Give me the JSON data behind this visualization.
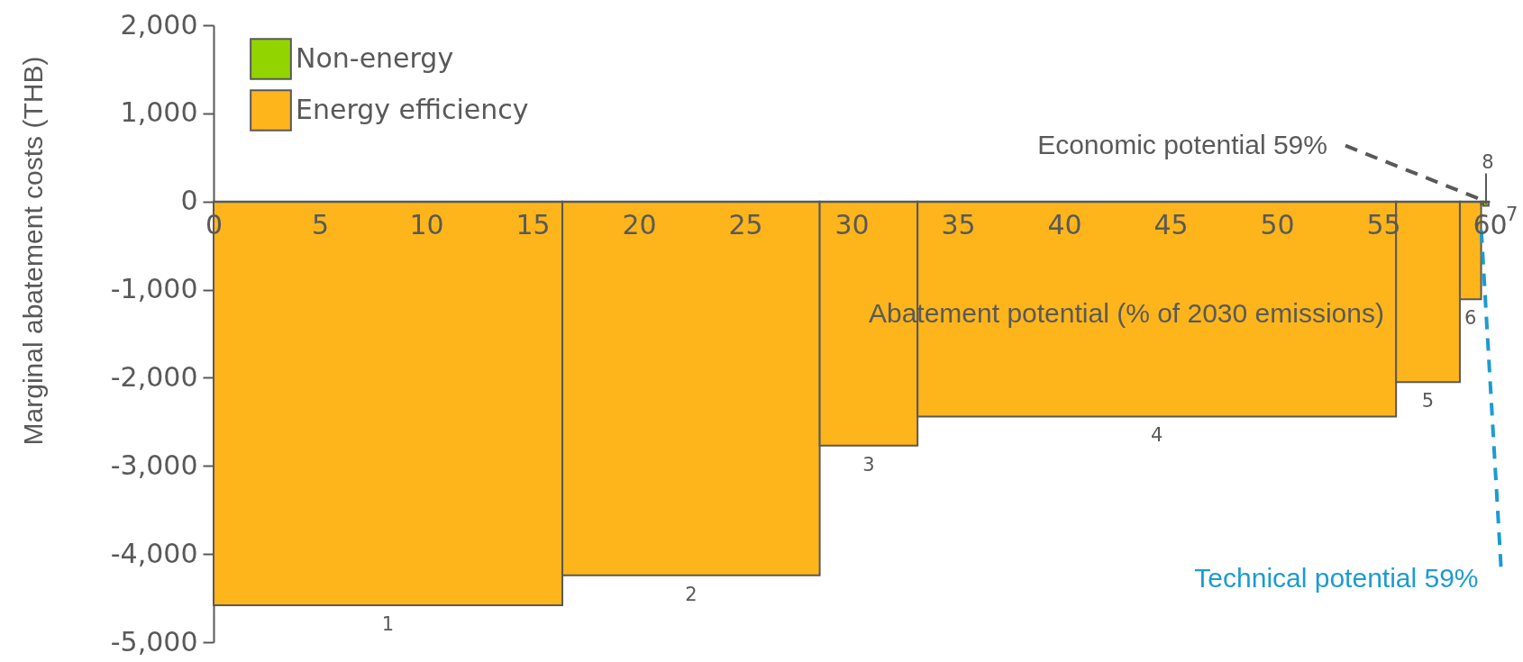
{
  "chart_data": {
    "type": "histogram",
    "xlabel": "Abatement potential (% of 2030 emissions)",
    "ylabel": "Marginal abatement costs (THB)",
    "bins": [
      0,
      16.4,
      28.5,
      33.1,
      55.6,
      58.6,
      59.6,
      59.7,
      59.95
    ],
    "series": [
      {
        "name": "Non-energy",
        "color": "#92d400",
        "values": [
          null,
          null,
          null,
          null,
          null,
          null,
          null,
          -50
        ]
      },
      {
        "name": "Energy efficiency",
        "color": "#fdb51b",
        "values": [
          -4580,
          -4240,
          -2770,
          -2440,
          -2050,
          -1110,
          -30,
          null
        ]
      }
    ],
    "xlim": [
      0,
      60
    ],
    "xticks": [
      0,
      5,
      10,
      15,
      20,
      25,
      30,
      35,
      40,
      45,
      50,
      55,
      60
    ],
    "ylim": [
      -5000,
      2000
    ],
    "yticks": [
      {
        "value": -5000,
        "label": "-5,000"
      },
      {
        "value": -4000,
        "label": "-4,000"
      },
      {
        "value": -3000,
        "label": "-3,000"
      },
      {
        "value": -2000,
        "label": "-2,000"
      },
      {
        "value": -1000,
        "label": "-1,000"
      },
      {
        "value": 0,
        "label": "0"
      },
      {
        "value": 1000,
        "label": "1,000"
      },
      {
        "value": 2000,
        "label": "2,000"
      }
    ],
    "grid": false,
    "legend": "top left",
    "annotations": [
      {
        "text": "1",
        "x": 8.2,
        "y": -4580
      },
      {
        "text": "2",
        "x": 22.45,
        "y": -4240
      },
      {
        "text": "3",
        "x": 30.8,
        "y": -2770
      },
      {
        "text": "4",
        "x": 44.35,
        "y": -2440
      },
      {
        "text": "5",
        "x": 57.1,
        "y": -2050
      },
      {
        "text": "6",
        "x": 59.1,
        "y": -1110
      },
      {
        "text": "7",
        "x": 59.65,
        "y": -30
      },
      {
        "text": "8",
        "x": 59.83,
        "y": -50
      },
      {
        "text": "Economic potential 59%",
        "x": 59.83,
        "y": 0
      },
      {
        "text": "Technical potential 59%",
        "x": 59.6,
        "y": -300
      }
    ]
  }
}
